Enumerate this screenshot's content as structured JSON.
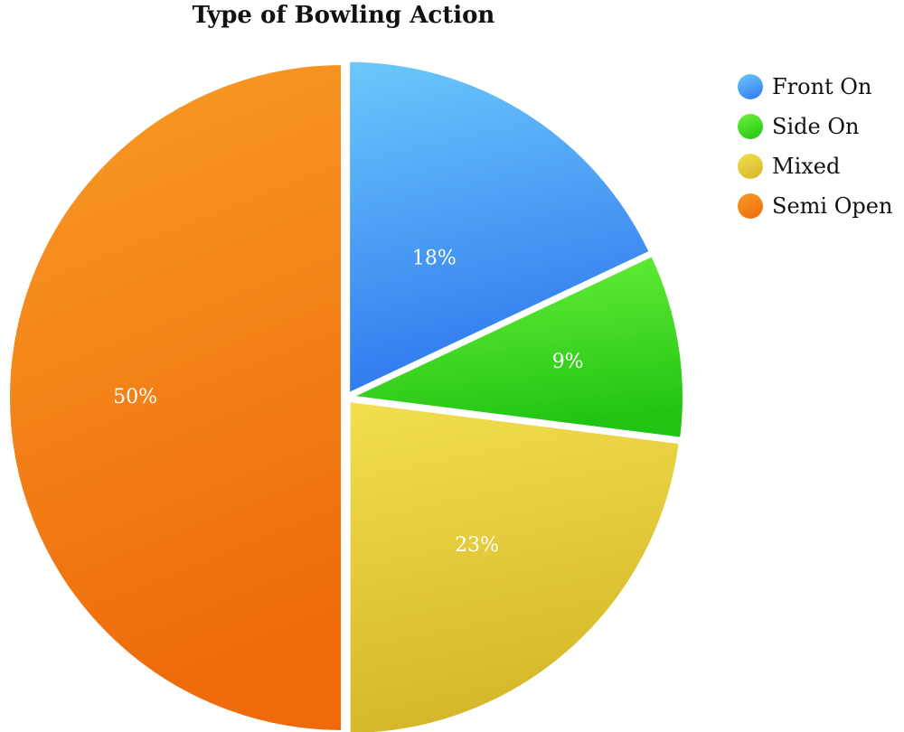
{
  "chart_data": {
    "type": "pie",
    "title": "Type of Bowling Action",
    "slices": [
      {
        "label": "Front On",
        "value": 18,
        "value_label": "18%",
        "color": "#4aa8f5",
        "color_light": "#6cc8fb",
        "color_dark": "#2f78ee"
      },
      {
        "label": "Side On",
        "value": 9,
        "value_label": "9%",
        "color": "#36e51f",
        "color_light": "#6cf23a",
        "color_dark": "#22c414"
      },
      {
        "label": "Mixed",
        "value": 23,
        "value_label": "23%",
        "color": "#e8cc3a",
        "color_light": "#f2de4e",
        "color_dark": "#d4b728"
      },
      {
        "label": "Semi Open",
        "value": 50,
        "value_label": "50%",
        "color": "#f57a14",
        "color_light": "#f89c26",
        "color_dark": "#ee6a0a"
      }
    ],
    "legend_position": "top-right"
  }
}
